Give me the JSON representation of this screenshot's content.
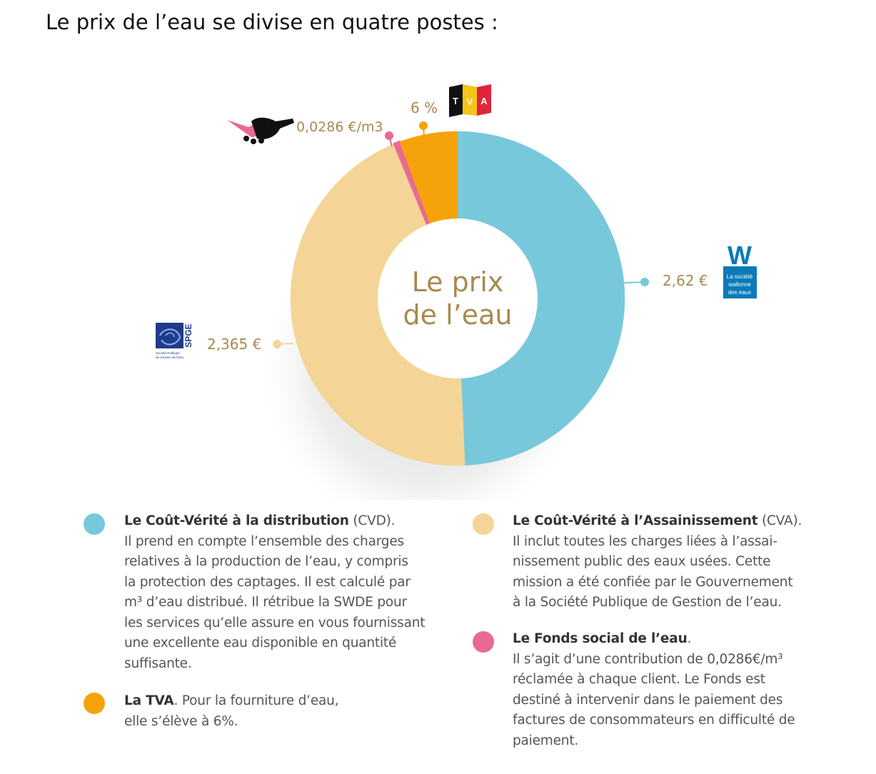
{
  "page": {
    "title": "Le prix de l’eau se divise en quatre postes :"
  },
  "chart_data": {
    "type": "pie",
    "center_label": [
      "Le prix",
      "de l’eau"
    ],
    "slices": [
      {
        "key": "cvd",
        "value": 2.62,
        "label": "2,62 €",
        "color": "#78c8dc"
      },
      {
        "key": "cva",
        "value": 2.365,
        "label": "2,365 €",
        "color": "#f5d497"
      },
      {
        "key": "fonds",
        "value": 0.0286,
        "label": "0,0286 €/m3",
        "color": "#e86a94"
      },
      {
        "key": "tva",
        "value": 0.3,
        "label": "6 %",
        "color": "#f5a30a"
      }
    ],
    "logos": {
      "tva": {
        "letters": [
          "T",
          "V",
          "A"
        ],
        "colors": [
          "#111111",
          "#f5c518",
          "#e0253a"
        ]
      },
      "swde": {
        "letter": "W",
        "lines": [
          "La société",
          "wallonne",
          "des eaux"
        ],
        "color": "#0a7ab8"
      },
      "spge": {
        "text": "SPGE",
        "caption": [
          "Société Publique",
          "de Gestion de l'Eau"
        ],
        "color": "#1f3b8c"
      },
      "fonds": {
        "icon": "handshake-icon",
        "color": "#e86a94"
      }
    }
  },
  "legend": {
    "cvd": {
      "title": "Le Coût-Vérité à la distribution",
      "abbr": " (CVD).",
      "lines": [
        "Il prend en compte l’ensemble des charges",
        "relatives à la production de l’eau, y compris",
        "la protection des captages. Il est calculé par",
        "m³ d’eau distribué. Il rétribue la SWDE pour",
        "les services qu’elle assure en vous fournissant",
        "une excellente eau disponible en quantité",
        "suffisante."
      ]
    },
    "tva": {
      "title": "La TVA",
      "rest": ". Pour la fourniture d’eau,",
      "line2": "elle s’élève à 6%."
    },
    "cva": {
      "title": "Le Coût-Vérité à l’Assainissement",
      "abbr": " (CVA).",
      "lines": [
        "Il inclut toutes les charges liées à l’assai-",
        "nissement public des eaux usées. Cette",
        "mission a été confiée par le Gouvernement",
        "à la Société Publique de Gestion de l’eau."
      ]
    },
    "fonds": {
      "title": "Le Fonds social de l’eau",
      "rest": ".",
      "lines": [
        "Il s’agit d’une contribution de 0,0286€/m³",
        "réclamée à chaque client. Le Fonds est",
        "destiné à intervenir dans le paiement des",
        "factures de consommateurs en difficulté de",
        "paiement."
      ]
    }
  }
}
